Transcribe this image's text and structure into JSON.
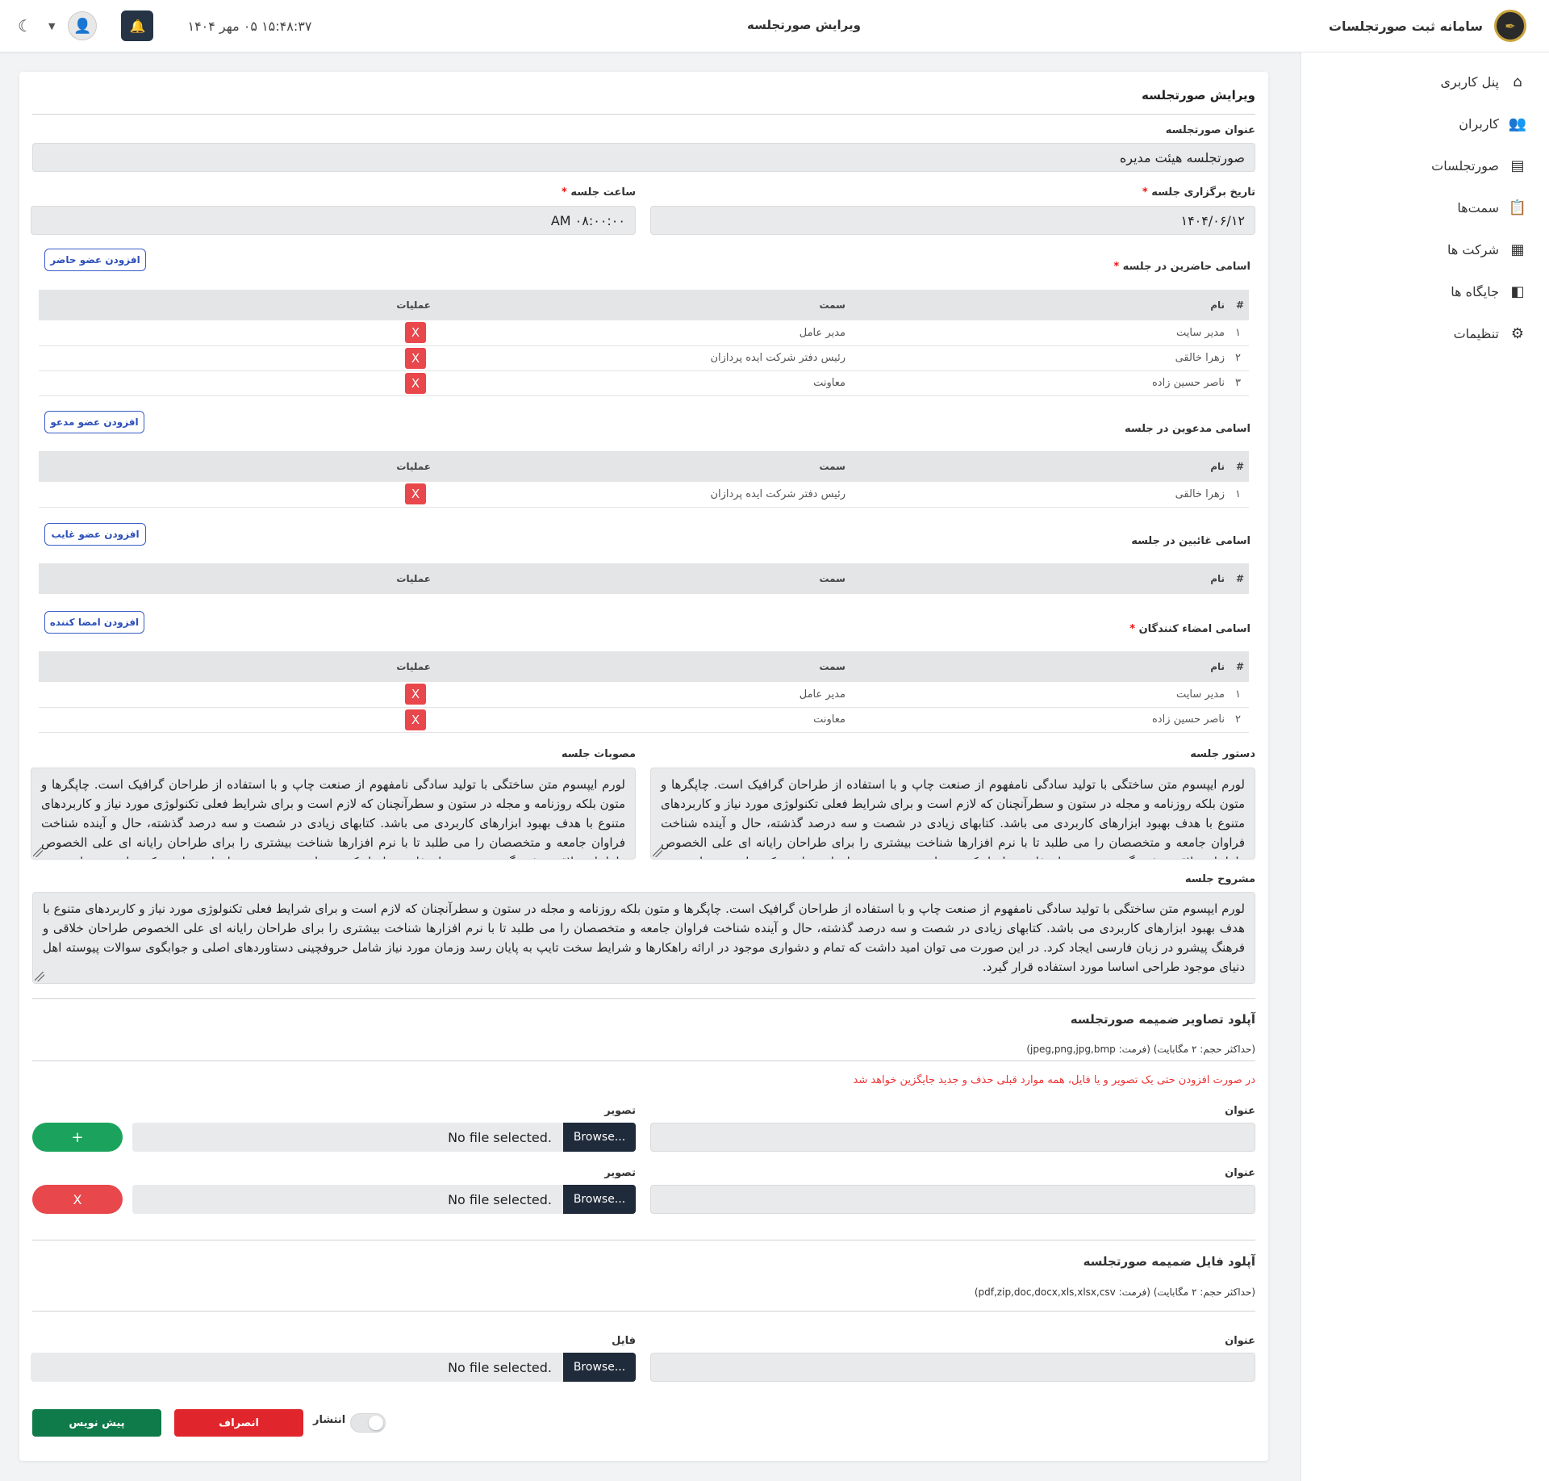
{
  "app": {
    "brand_title": "سامانه ثبت صورتجلسات",
    "page_title": "ویرایش صورتجلسه",
    "datetime": "۱۵:۴۸:۳۷ ۰۵ مهر ۱۴۰۴",
    "moon_icon": "☾",
    "bell_icon": "🔔"
  },
  "sidebar": {
    "items": [
      {
        "label": "پنل کاربری",
        "icon": "home-icon",
        "glyph": "⌂"
      },
      {
        "label": "کاربران",
        "icon": "users-icon",
        "glyph": "👥"
      },
      {
        "label": "صورتجلسات",
        "icon": "document-icon",
        "glyph": "▤"
      },
      {
        "label": "سمت‌ها",
        "icon": "clipboard-icon",
        "glyph": "📋"
      },
      {
        "label": "شرکت ها",
        "icon": "building-icon",
        "glyph": "▦"
      },
      {
        "label": "جایگاه ها",
        "icon": "door-icon",
        "glyph": "◧"
      },
      {
        "label": "تنظیمات",
        "icon": "gear-icon",
        "glyph": "⚙"
      }
    ]
  },
  "form": {
    "heading": "ویرایش صورتجلسه",
    "title_label": "عنوان صورتجلسه",
    "title_value": "صورتجلسه هیئت مدیره",
    "date_label": "تاریخ برگزاری جلسه",
    "date_value": "۱۴۰۴/۰۶/۱۲",
    "time_label": "ساعت جلسه",
    "time_value": "AM ۰۸:۰۰:۰۰",
    "required_mark": "*",
    "col_num": "#",
    "col_name": "نام",
    "col_role": "سمت",
    "col_ops": "عملیات",
    "delete_glyph": "X",
    "attendees": {
      "label": "اسامی حاضرین در جلسه",
      "add_label": "افزودن عضو حاضر",
      "rows": [
        {
          "n": "۱",
          "name": "مدیر سایت",
          "role": "مدیر عامل"
        },
        {
          "n": "۲",
          "name": "زهرا خالقی",
          "role": "رئیس دفتر شرکت ایده پردازان"
        },
        {
          "n": "۳",
          "name": "ناصر حسین زاده",
          "role": "معاونت"
        }
      ]
    },
    "invitees": {
      "label": "اسامی مدعوین در جلسه",
      "add_label": "افزودن عضو مدعو",
      "rows": [
        {
          "n": "۱",
          "name": "زهرا خالقی",
          "role": "رئیس دفتر شرکت ایده پردازان"
        }
      ]
    },
    "absentees": {
      "label": "اسامی غائبین در جلسه",
      "add_label": "افزودن عضو غایب",
      "rows": []
    },
    "signers": {
      "label": "اسامی امضاء کنندگان",
      "add_label": "افزودن امضا کننده",
      "rows": [
        {
          "n": "۱",
          "name": "مدیر سایت",
          "role": "مدیر عامل"
        },
        {
          "n": "۲",
          "name": "ناصر حسین زاده",
          "role": "معاونت"
        }
      ]
    },
    "agenda_label": "دستور جلسه",
    "agenda_text": "لورم ایپسوم متن ساختگی با تولید سادگی نامفهوم از صنعت چاپ و با استفاده از طراحان گرافیک است. چاپگرها و متون بلکه روزنامه و مجله در ستون و سطرآنچنان که لازم است و برای شرایط فعلی تکنولوژی مورد نیاز و کاربردهای متنوع با هدف بهبود ابزارهای کاربردی می باشد. کتابهای زیادی در شصت و سه درصد گذشته، حال و آینده شناخت فراوان جامعه و متخصصان را می طلبد تا با نرم افزارها شناخت بیشتری را برای طراحان رایانه ای علی الخصوص طراحان خلاقی و فرهنگ پیشرو در زبان فارسی ایجاد کرد. در این صورت می توان امید داشت که تمام و دشواری",
    "resolutions_label": "مصوبات جلسه",
    "resolutions_text": "لورم ایپسوم متن ساختگی با تولید سادگی نامفهوم از صنعت چاپ و با استفاده از طراحان گرافیک است. چاپگرها و متون بلکه روزنامه و مجله در ستون و سطرآنچنان که لازم است و برای شرایط فعلی تکنولوژی مورد نیاز و کاربردهای متنوع با هدف بهبود ابزارهای کاربردی می باشد. کتابهای زیادی در شصت و سه درصد گذشته، حال و آینده شناخت فراوان جامعه و متخصصان را می طلبد تا با نرم افزارها شناخت بیشتری را برای طراحان رایانه ای علی الخصوص طراحان خلاقی و فرهنگ پیشرو در زبان فارسی ایجاد کرد. در این صورت می توان امید داشت که تمام و دشواری",
    "minutes_label": "مشروح جلسه",
    "minutes_text": "لورم ایپسوم متن ساختگی با تولید سادگی نامفهوم از صنعت چاپ و با استفاده از طراحان گرافیک است. چاپگرها و متون بلکه روزنامه و مجله در ستون و سطرآنچنان که لازم است و برای شرایط فعلی تکنولوژی مورد نیاز و کاربردهای متنوع با هدف بهبود ابزارهای کاربردی می باشد. کتابهای زیادی در شصت و سه درصد گذشته، حال و آینده شناخت فراوان جامعه و متخصصان را می طلبد تا با نرم افزارها شناخت بیشتری را برای طراحان رایانه ای علی الخصوص طراحان خلاقی و فرهنگ پیشرو در زبان فارسی ایجاد کرد. در این صورت می توان امید داشت که تمام و دشواری موجود در ارائه راهکارها و شرایط سخت تایپ به پایان رسد وزمان مورد نیاز شامل حروفچینی دستاوردهای اصلی و جوابگوی سوالات پیوسته اهل دنیای موجود طراحی اساسا مورد استفاده قرار گیرد."
  },
  "images_upload": {
    "title": "آپلود تصاویر ضمیمه صورتجلسه",
    "note": "(حداکثر حجم: ۲ مگابایت) (فرمت: jpeg,png,jpg,bmp)",
    "warning": "در صورت افزودن حتی یک تصویر و یا فایل، همه موارد قبلی حذف و جدید جایگزین خواهد شد",
    "title_label": "عنوان",
    "image_label": "تصویر",
    "browse": "Browse...",
    "no_file": "No file selected.",
    "add_glyph": "+",
    "remove_glyph": "X"
  },
  "files_upload": {
    "title": "آپلود فایل ضمیمه صورتجلسه",
    "note": "(حداکثر حجم: ۲ مگابایت) (فرمت: pdf,zip,doc,docx,xls,xlsx,csv)",
    "title_label": "عنوان",
    "file_label": "فایل",
    "browse": "Browse...",
    "no_file": "No file selected."
  },
  "actions": {
    "publish_label": "انتشار",
    "publish_on": false,
    "cancel_label": "انصراف",
    "draft_label": "پیش نویس"
  },
  "colors": {
    "green": "#1ba35d",
    "red": "#e8474b",
    "dark_green": "#0f7a4a",
    "cancel_red": "#e0262c"
  }
}
